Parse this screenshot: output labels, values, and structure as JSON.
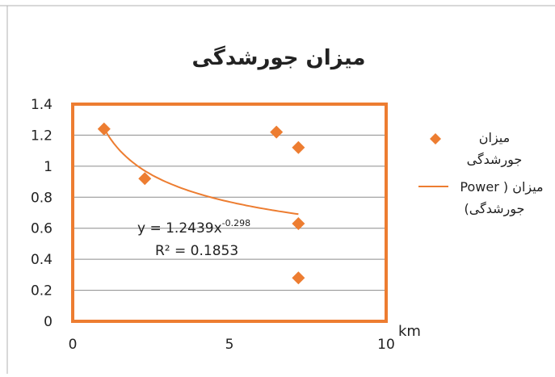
{
  "colors": {
    "plot_border": "#ED7D31",
    "marker": "#ED7D31",
    "trendline": "#ED7D31",
    "grid": "#8C8C8C",
    "text": "#222222"
  },
  "chart_data": {
    "type": "scatter",
    "title": "میزان جورشدگی",
    "xlabel": "km",
    "ylabel": "",
    "xlim": [
      0,
      10
    ],
    "ylim": [
      0,
      1.4
    ],
    "x_ticks": [
      "0",
      "5",
      "10"
    ],
    "y_ticks": [
      "0",
      "0.2",
      "0.4",
      "0.6",
      "0.8",
      "1",
      "1.2",
      "1.4"
    ],
    "grid": "horizontal",
    "marker_shape": "diamond",
    "series": [
      {
        "name": "میزان جورشدگی",
        "points": [
          {
            "x": 1.0,
            "y": 1.24
          },
          {
            "x": 2.3,
            "y": 0.92
          },
          {
            "x": 6.5,
            "y": 1.22
          },
          {
            "x": 7.2,
            "y": 1.12
          },
          {
            "x": 7.2,
            "y": 0.63
          },
          {
            "x": 7.2,
            "y": 0.28
          }
        ]
      }
    ],
    "trendline": {
      "type": "power",
      "coefficient": 1.2439,
      "exponent": -0.298,
      "x_range": [
        1.0,
        7.2
      ],
      "equation": "y = 1.2439x",
      "equation_exponent": "-0.298",
      "r_squared": "R² = 0.1853"
    },
    "legend": {
      "position": "right",
      "items": [
        {
          "kind": "marker",
          "lines": [
            "میزان",
            "جورشدگی"
          ]
        },
        {
          "kind": "line",
          "lines": [
            "Power ) میزان",
            "(جورشدگی"
          ]
        }
      ]
    }
  }
}
